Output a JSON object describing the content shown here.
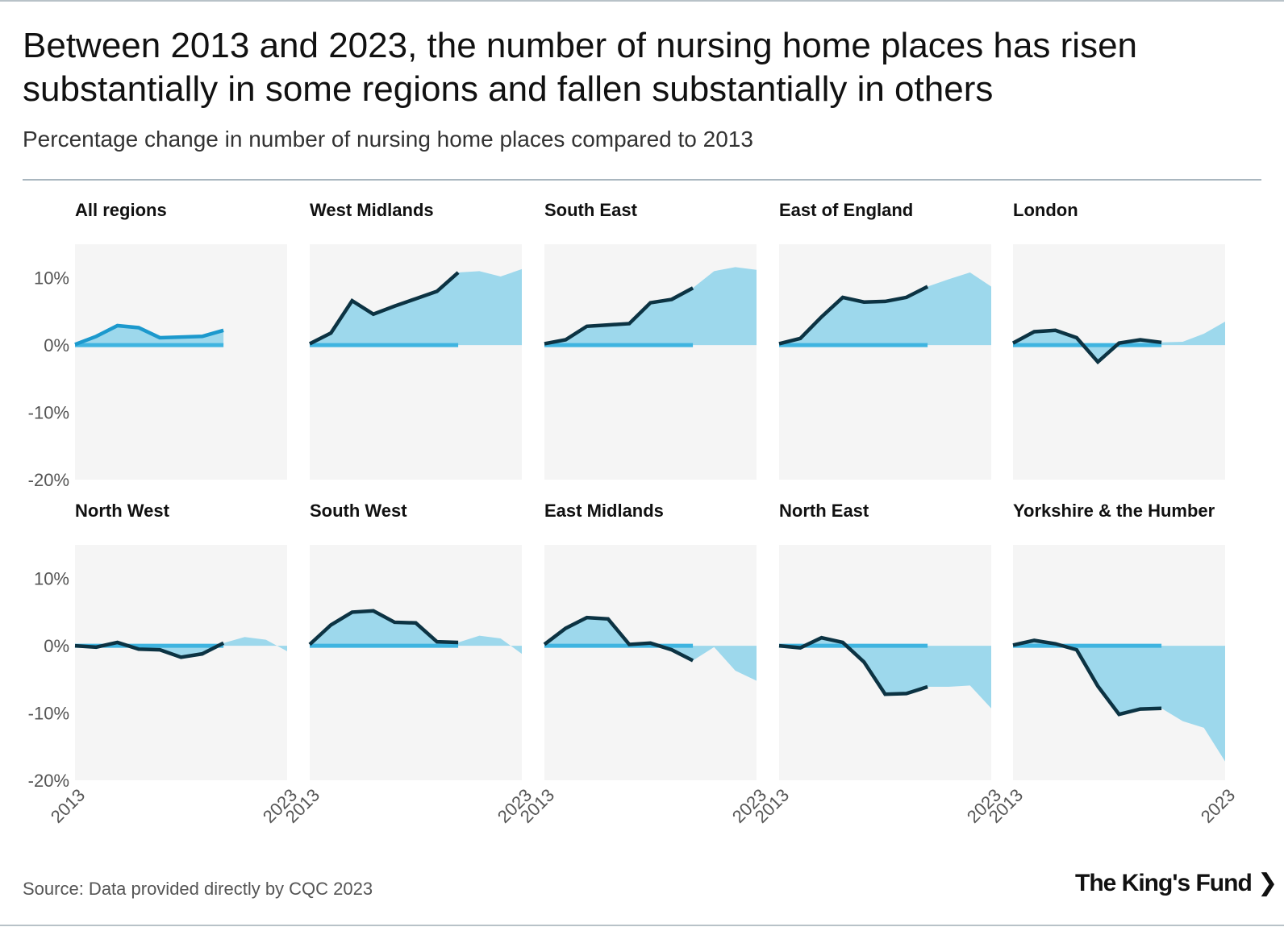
{
  "header": {
    "title": "Between 2013 and 2023, the number of nursing home places has risen substantially in some regions and fallen substantially in others",
    "subtitle": "Percentage change in number of nursing home places compared to 2013"
  },
  "footer": {
    "source": "Source: Data provided directly by CQC 2023",
    "logo_text": "The King's Fund"
  },
  "colors": {
    "panel_bg": "#f5f5f5",
    "area_fill": "#9dd8ec",
    "line_dark": "#0c3343",
    "line_highlight": "#1c99cd",
    "baseline": "#3fb4e0",
    "tick_text": "#555555"
  },
  "chart_data": {
    "type": "area",
    "title": "Between 2013 and 2023, the number of nursing home places has risen substantially in some regions and fallen substantially in others",
    "ylabel": "Percentage change in number of nursing home places compared to 2013",
    "ylim": [
      -20,
      15
    ],
    "yticks": [
      10,
      0,
      -10,
      -20
    ],
    "ytick_labels": [
      "10%",
      "0%",
      "-10%",
      "-20%"
    ],
    "x": [
      2013,
      2014,
      2015,
      2016,
      2017,
      2018,
      2019,
      2020,
      2021,
      2022,
      2023
    ],
    "xtick_labels": [
      "2013",
      "2023"
    ],
    "series": [
      {
        "name": "All regions",
        "values": [
          0.1,
          1.3,
          2.9,
          2.6,
          1.1,
          1.2,
          1.3,
          2.2,
          null,
          null,
          null
        ]
      },
      {
        "name": "West Midlands",
        "values": [
          0.2,
          1.8,
          6.6,
          4.6,
          5.8,
          6.9,
          8.0,
          10.8,
          11.0,
          10.2,
          11.3
        ]
      },
      {
        "name": "South East",
        "values": [
          0.2,
          0.8,
          2.8,
          3.0,
          3.2,
          6.3,
          6.8,
          8.5,
          11.0,
          11.6,
          11.2
        ]
      },
      {
        "name": "East of England",
        "values": [
          0.2,
          1.0,
          4.2,
          7.1,
          6.4,
          6.5,
          7.1,
          8.7,
          9.8,
          10.8,
          8.7
        ]
      },
      {
        "name": "London",
        "values": [
          0.3,
          2.0,
          2.2,
          1.1,
          -2.5,
          0.3,
          0.8,
          0.4,
          0.5,
          1.7,
          3.5
        ]
      },
      {
        "name": "North West",
        "values": [
          0.0,
          -0.2,
          0.5,
          -0.5,
          -0.6,
          -1.7,
          -1.2,
          0.4,
          1.3,
          0.9,
          -0.8
        ]
      },
      {
        "name": "South West",
        "values": [
          0.2,
          3.1,
          5.0,
          5.2,
          3.5,
          3.4,
          0.6,
          0.5,
          1.5,
          1.1,
          -1.2
        ]
      },
      {
        "name": "East Midlands",
        "values": [
          0.2,
          2.6,
          4.2,
          4.0,
          0.2,
          0.4,
          -0.6,
          -2.2,
          -0.2,
          -3.7,
          -5.2
        ]
      },
      {
        "name": "North East",
        "values": [
          0.0,
          -0.3,
          1.2,
          0.5,
          -2.4,
          -7.2,
          -7.1,
          -6.1,
          -6.1,
          -5.9,
          -9.3
        ]
      },
      {
        "name": "Yorkshire & the Humber",
        "values": [
          0.1,
          0.8,
          0.3,
          -0.6,
          -6.0,
          -10.2,
          -9.4,
          -9.3,
          -11.2,
          -12.2,
          -17.2
        ]
      }
    ],
    "highlight_series": "All regions"
  }
}
